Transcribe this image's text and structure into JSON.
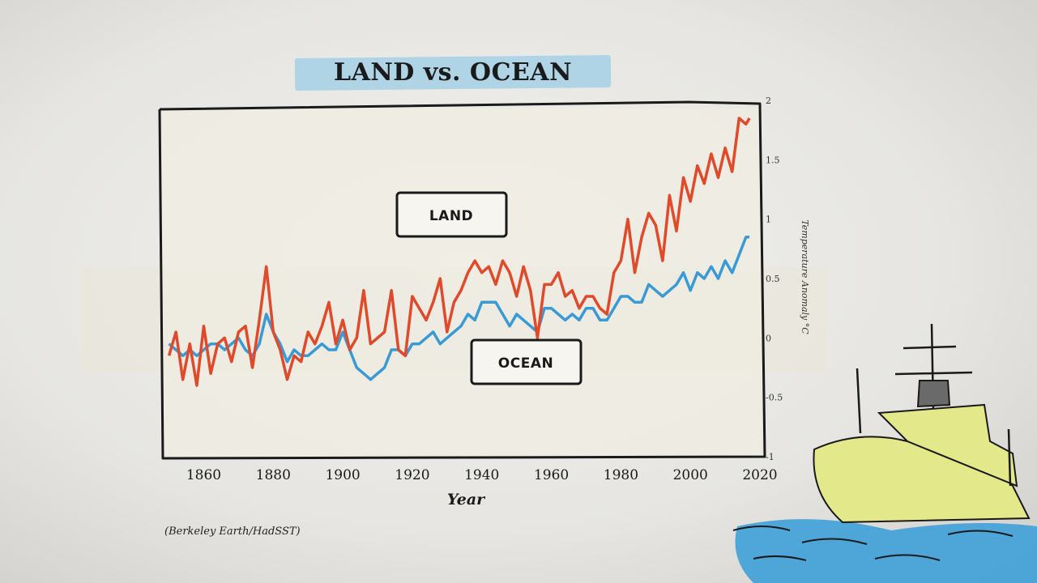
{
  "chart_data": {
    "type": "line",
    "title": "LAND vs. OCEAN",
    "xlabel": "Year",
    "ylabel": "Temperature Anomaly °C",
    "source": "(Berkeley Earth/HadSST)",
    "xlim": [
      1848,
      2020
    ],
    "ylim": [
      -1,
      2
    ],
    "x_ticks": [
      1860,
      1880,
      1900,
      1920,
      1940,
      1960,
      1980,
      2000,
      2020
    ],
    "y_ticks": [
      -1,
      -0.5,
      0,
      0.5,
      1,
      1.5,
      2
    ],
    "y_tick_labels": [
      "-1",
      "-0.5",
      "0",
      "0.5",
      "1",
      "1.5",
      "2"
    ],
    "grid": false,
    "series": [
      {
        "name": "LAND",
        "color": "#e04a2b",
        "x": [
          1850,
          1852,
          1854,
          1856,
          1858,
          1860,
          1862,
          1864,
          1866,
          1868,
          1870,
          1872,
          1874,
          1876,
          1878,
          1880,
          1882,
          1884,
          1886,
          1888,
          1890,
          1892,
          1894,
          1896,
          1898,
          1900,
          1902,
          1904,
          1906,
          1908,
          1910,
          1912,
          1914,
          1916,
          1918,
          1920,
          1922,
          1924,
          1926,
          1928,
          1930,
          1932,
          1934,
          1936,
          1938,
          1940,
          1942,
          1944,
          1946,
          1948,
          1950,
          1952,
          1954,
          1956,
          1958,
          1960,
          1962,
          1964,
          1966,
          1968,
          1970,
          1972,
          1974,
          1976,
          1978,
          1980,
          1982,
          1984,
          1986,
          1988,
          1990,
          1992,
          1994,
          1996,
          1998,
          2000,
          2002,
          2004,
          2006,
          2008,
          2010,
          2012,
          2014,
          2016,
          2017
        ],
        "values": [
          -0.15,
          0.05,
          -0.35,
          -0.05,
          -0.4,
          0.1,
          -0.3,
          -0.05,
          0.0,
          -0.2,
          0.05,
          0.1,
          -0.25,
          0.15,
          0.6,
          0.05,
          -0.1,
          -0.35,
          -0.15,
          -0.2,
          0.05,
          -0.05,
          0.1,
          0.3,
          -0.05,
          0.15,
          -0.1,
          0.0,
          0.4,
          -0.05,
          0.0,
          0.05,
          0.4,
          -0.1,
          -0.15,
          0.35,
          0.25,
          0.15,
          0.3,
          0.5,
          0.05,
          0.3,
          0.4,
          0.55,
          0.65,
          0.55,
          0.6,
          0.45,
          0.65,
          0.55,
          0.35,
          0.6,
          0.4,
          0.0,
          0.45,
          0.45,
          0.55,
          0.35,
          0.4,
          0.25,
          0.35,
          0.35,
          0.25,
          0.2,
          0.55,
          0.65,
          1.0,
          0.55,
          0.85,
          1.05,
          0.95,
          0.65,
          1.2,
          0.9,
          1.35,
          1.15,
          1.45,
          1.3,
          1.55,
          1.35,
          1.6,
          1.4,
          1.85,
          1.8,
          1.85
        ]
      },
      {
        "name": "OCEAN",
        "color": "#3a9ad6",
        "x": [
          1850,
          1852,
          1854,
          1856,
          1858,
          1860,
          1862,
          1864,
          1866,
          1868,
          1870,
          1872,
          1874,
          1876,
          1878,
          1880,
          1882,
          1884,
          1886,
          1888,
          1890,
          1892,
          1894,
          1896,
          1898,
          1900,
          1902,
          1904,
          1906,
          1908,
          1910,
          1912,
          1914,
          1916,
          1918,
          1920,
          1922,
          1924,
          1926,
          1928,
          1930,
          1932,
          1934,
          1936,
          1938,
          1940,
          1942,
          1944,
          1946,
          1948,
          1950,
          1952,
          1954,
          1956,
          1958,
          1960,
          1962,
          1964,
          1966,
          1968,
          1970,
          1972,
          1974,
          1976,
          1978,
          1980,
          1982,
          1984,
          1986,
          1988,
          1990,
          1992,
          1994,
          1996,
          1998,
          2000,
          2002,
          2004,
          2006,
          2008,
          2010,
          2012,
          2014,
          2016,
          2017
        ],
        "values": [
          -0.05,
          -0.1,
          -0.15,
          -0.1,
          -0.15,
          -0.1,
          -0.05,
          -0.05,
          -0.1,
          -0.05,
          0.0,
          -0.1,
          -0.15,
          -0.05,
          0.2,
          0.05,
          -0.05,
          -0.2,
          -0.1,
          -0.15,
          -0.15,
          -0.1,
          -0.05,
          -0.1,
          -0.1,
          0.05,
          -0.1,
          -0.25,
          -0.3,
          -0.35,
          -0.3,
          -0.25,
          -0.1,
          -0.1,
          -0.15,
          -0.05,
          -0.05,
          0.0,
          0.05,
          -0.05,
          0.0,
          0.05,
          0.1,
          0.2,
          0.15,
          0.3,
          0.3,
          0.3,
          0.2,
          0.1,
          0.2,
          0.15,
          0.1,
          0.05,
          0.25,
          0.25,
          0.2,
          0.15,
          0.2,
          0.15,
          0.25,
          0.25,
          0.15,
          0.15,
          0.25,
          0.35,
          0.35,
          0.3,
          0.3,
          0.45,
          0.4,
          0.35,
          0.4,
          0.45,
          0.55,
          0.4,
          0.55,
          0.5,
          0.6,
          0.5,
          0.65,
          0.55,
          0.7,
          0.85,
          0.85
        ]
      }
    ],
    "annotations": [
      {
        "text": "LAND"
      },
      {
        "text": "OCEAN"
      }
    ]
  },
  "colors": {
    "land": "#e04a2b",
    "ocean": "#3a9ad6",
    "title_highlight": "#a9d2e4",
    "ship_hull": "#e3e88a",
    "water": "#3ea0d8"
  },
  "decoration": {
    "illustration": "ship-on-water"
  }
}
